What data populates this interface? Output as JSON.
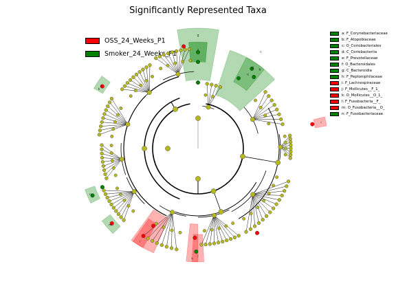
{
  "title": "Significantly Represented Taxa",
  "colors": {
    "group1": "#ff0000",
    "group2": "#008000",
    "node": "#b5b81e"
  },
  "groups": [
    {
      "label": "OSS_24_Weeks_P1",
      "color": "#ff0000"
    },
    {
      "label": "Smoker_24_Weeks_P1",
      "color": "#008000"
    }
  ],
  "taxa": [
    {
      "label": "a: F_Corynebacteriaceae",
      "color": "#008000"
    },
    {
      "label": "b: F_Atopobiaceae",
      "color": "#008000"
    },
    {
      "label": "c: O_Coriobacteriales",
      "color": "#008000"
    },
    {
      "label": "d: C_Coriobacteriia",
      "color": "#008000"
    },
    {
      "label": "e: F_Prevotellaceae",
      "color": "#008000"
    },
    {
      "label": "f: O_Bacteroidales",
      "color": "#008000"
    },
    {
      "label": "g: C_Bacteroidia",
      "color": "#008000"
    },
    {
      "label": "h: F_Peptoniphilaceae",
      "color": "#008000"
    },
    {
      "label": "i: F_Lachnospiraceae",
      "color": "#ff0000"
    },
    {
      "label": "j: F_Mollicutes__F_1_",
      "color": "#ff0000"
    },
    {
      "label": "k: O_Mollicutes__O_1_",
      "color": "#ff0000"
    },
    {
      "label": "l: F_Fusobacteria__F_",
      "color": "#ff0000"
    },
    {
      "label": "m: O_Fusobacteria__O_",
      "color": "#ff0000"
    },
    {
      "label": "n: F_Fusobacteriaceae",
      "color": "#008000"
    }
  ],
  "clade_labels": [
    {
      "letter": "g",
      "color": "#008000"
    },
    {
      "letter": "f",
      "color": "#008000"
    },
    {
      "letter": "e",
      "color": "#008000"
    },
    {
      "letter": "d",
      "color": "#008000"
    },
    {
      "letter": "c",
      "color": "#008000"
    },
    {
      "letter": "b",
      "color": "#008000"
    },
    {
      "letter": "i",
      "color": "#ff0000"
    },
    {
      "letter": "n",
      "color": "#008000"
    },
    {
      "letter": "m",
      "color": "#ff0000"
    },
    {
      "letter": "l",
      "color": "#ff0000"
    },
    {
      "letter": "k",
      "color": "#ff0000"
    },
    {
      "letter": "j",
      "color": "#ff0000"
    },
    {
      "letter": "h",
      "color": "#008000"
    },
    {
      "letter": "a",
      "color": "#008000"
    }
  ]
}
